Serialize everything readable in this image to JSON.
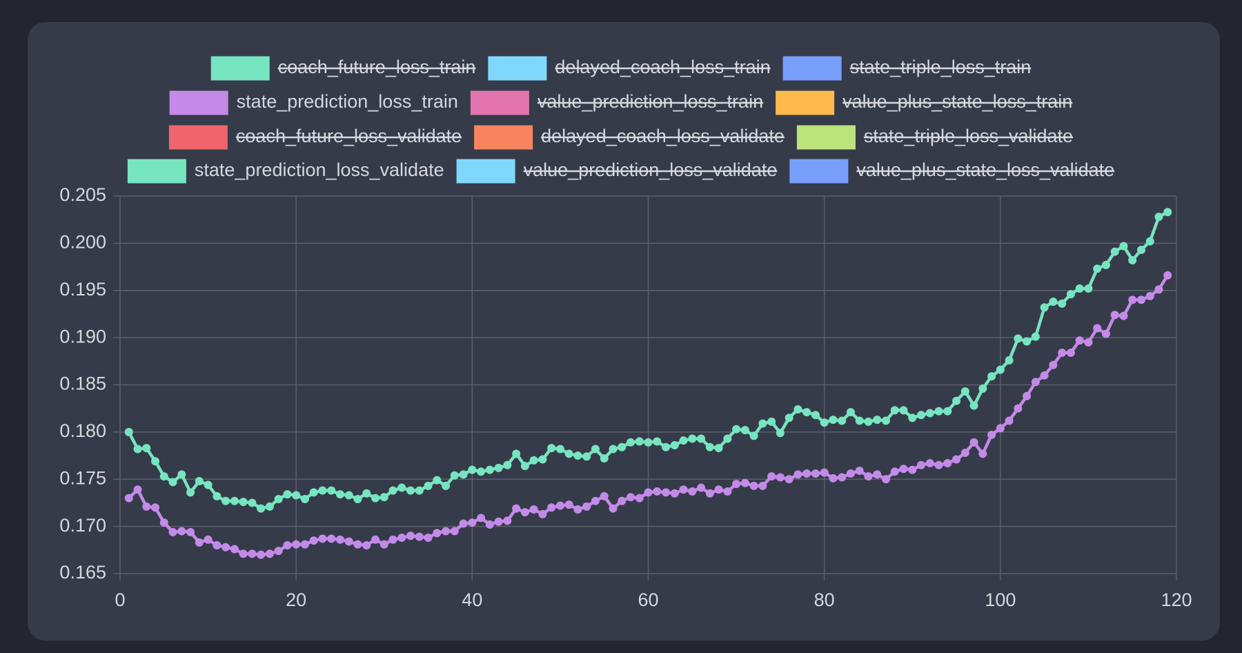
{
  "chart_data": {
    "type": "line",
    "x": [
      1,
      2,
      3,
      4,
      5,
      6,
      7,
      8,
      9,
      10,
      11,
      12,
      13,
      14,
      15,
      16,
      17,
      18,
      19,
      20,
      21,
      22,
      23,
      24,
      25,
      26,
      27,
      28,
      29,
      30,
      31,
      32,
      33,
      34,
      35,
      36,
      37,
      38,
      39,
      40,
      41,
      42,
      43,
      44,
      45,
      46,
      47,
      48,
      49,
      50,
      51,
      52,
      53,
      54,
      55,
      56,
      57,
      58,
      59,
      60,
      61,
      62,
      63,
      64,
      65,
      66,
      67,
      68,
      69,
      70,
      71,
      72,
      73,
      74,
      75,
      76,
      77,
      78,
      79,
      80,
      81,
      82,
      83,
      84,
      85,
      86,
      87,
      88,
      89,
      90,
      91,
      92,
      93,
      94,
      95,
      96,
      97,
      98,
      99,
      100,
      101,
      102,
      103,
      104,
      105,
      106,
      107,
      108,
      109,
      110,
      111,
      112,
      113,
      114,
      115,
      116,
      117,
      118,
      119
    ],
    "series": [
      {
        "name": "coach_future_loss_train",
        "color": "#76e5c0",
        "hidden": true
      },
      {
        "name": "delayed_coach_loss_train",
        "color": "#7fd8fc",
        "hidden": true
      },
      {
        "name": "state_triple_loss_train",
        "color": "#78a0fb",
        "hidden": true
      },
      {
        "name": "state_prediction_loss_train",
        "color": "#c38ae8",
        "hidden": false,
        "values": [
          0.173,
          0.1739,
          0.1721,
          0.172,
          0.1704,
          0.1694,
          0.1695,
          0.1694,
          0.1683,
          0.1686,
          0.168,
          0.1678,
          0.1676,
          0.1671,
          0.1671,
          0.167,
          0.1671,
          0.1674,
          0.168,
          0.1681,
          0.1681,
          0.1685,
          0.1687,
          0.1687,
          0.1686,
          0.1684,
          0.1681,
          0.168,
          0.1686,
          0.1681,
          0.1686,
          0.1688,
          0.169,
          0.1689,
          0.1688,
          0.1693,
          0.1695,
          0.1695,
          0.1703,
          0.1704,
          0.1709,
          0.1702,
          0.1705,
          0.1706,
          0.1719,
          0.1715,
          0.1718,
          0.1713,
          0.172,
          0.1722,
          0.1723,
          0.1718,
          0.1721,
          0.1727,
          0.1732,
          0.1719,
          0.1727,
          0.1731,
          0.173,
          0.1736,
          0.1737,
          0.1736,
          0.1735,
          0.1739,
          0.1737,
          0.1741,
          0.1735,
          0.1739,
          0.1737,
          0.1745,
          0.1746,
          0.1743,
          0.1743,
          0.1753,
          0.1752,
          0.175,
          0.1755,
          0.1756,
          0.1756,
          0.1757,
          0.1751,
          0.1752,
          0.1756,
          0.1759,
          0.1753,
          0.1755,
          0.175,
          0.1758,
          0.1761,
          0.176,
          0.1765,
          0.1767,
          0.1765,
          0.1767,
          0.1771,
          0.1778,
          0.1789,
          0.1777,
          0.1797,
          0.1804,
          0.1812,
          0.1825,
          0.1838,
          0.1853,
          0.186,
          0.1871,
          0.1884,
          0.1884,
          0.1897,
          0.1895,
          0.191,
          0.1904,
          0.1924,
          0.1923,
          0.194,
          0.194,
          0.1944,
          0.1951,
          0.1966
        ]
      },
      {
        "name": "value_prediction_loss_train",
        "color": "#e275ad",
        "hidden": true
      },
      {
        "name": "value_plus_state_loss_train",
        "color": "#fdb94d",
        "hidden": true
      },
      {
        "name": "coach_future_loss_validate",
        "color": "#f0646d",
        "hidden": true
      },
      {
        "name": "delayed_coach_loss_validate",
        "color": "#f7845e",
        "hidden": true
      },
      {
        "name": "state_triple_loss_validate",
        "color": "#bde37c",
        "hidden": true
      },
      {
        "name": "state_prediction_loss_validate",
        "color": "#76e5c0",
        "hidden": false,
        "values": [
          0.18,
          0.1782,
          0.1783,
          0.1769,
          0.1753,
          0.1747,
          0.1755,
          0.1736,
          0.1748,
          0.1744,
          0.1732,
          0.1727,
          0.1727,
          0.1726,
          0.1725,
          0.1719,
          0.1721,
          0.1729,
          0.1734,
          0.1733,
          0.1729,
          0.1736,
          0.1738,
          0.1738,
          0.1734,
          0.1733,
          0.1729,
          0.1735,
          0.173,
          0.1731,
          0.1738,
          0.1741,
          0.1738,
          0.1738,
          0.1743,
          0.1749,
          0.1743,
          0.1754,
          0.1755,
          0.176,
          0.1758,
          0.176,
          0.1762,
          0.1765,
          0.1777,
          0.1764,
          0.177,
          0.1771,
          0.1783,
          0.1782,
          0.1777,
          0.1775,
          0.1774,
          0.1782,
          0.1772,
          0.1782,
          0.1784,
          0.1789,
          0.179,
          0.1789,
          0.179,
          0.1784,
          0.1786,
          0.1791,
          0.1793,
          0.1793,
          0.1784,
          0.1783,
          0.1793,
          0.1803,
          0.1802,
          0.1796,
          0.1809,
          0.1811,
          0.1799,
          0.1815,
          0.1824,
          0.1821,
          0.1818,
          0.181,
          0.1813,
          0.1812,
          0.1821,
          0.1812,
          0.1811,
          0.1813,
          0.1812,
          0.1823,
          0.1823,
          0.1815,
          0.1818,
          0.182,
          0.1822,
          0.1822,
          0.1833,
          0.1843,
          0.1828,
          0.1846,
          0.1859,
          0.1866,
          0.1876,
          0.1899,
          0.1896,
          0.1901,
          0.1932,
          0.1938,
          0.1936,
          0.1946,
          0.1952,
          0.1952,
          0.1973,
          0.1977,
          0.1991,
          0.1997,
          0.1982,
          0.1993,
          0.2002,
          0.2028,
          0.2033
        ]
      },
      {
        "name": "value_prediction_loss_validate",
        "color": "#7fd8fc",
        "hidden": true
      },
      {
        "name": "value_plus_state_loss_validate",
        "color": "#78a0fb",
        "hidden": true
      }
    ],
    "xlim": [
      0,
      120
    ],
    "xticks": [
      0,
      20,
      40,
      60,
      80,
      100,
      120
    ],
    "ylim": [
      0.165,
      0.205
    ],
    "yticks": [
      {
        "value": 0.165,
        "label": "0.165"
      },
      {
        "value": 0.17,
        "label": "0.170"
      },
      {
        "value": 0.175,
        "label": "0.175"
      },
      {
        "value": 0.18,
        "label": "0.180"
      },
      {
        "value": 0.185,
        "label": "0.185"
      },
      {
        "value": 0.19,
        "label": "0.190"
      },
      {
        "value": 0.195,
        "label": "0.195"
      },
      {
        "value": 0.2,
        "label": "0.200"
      },
      {
        "value": 0.205,
        "label": "0.205"
      }
    ],
    "grid": true,
    "legend": "top"
  }
}
